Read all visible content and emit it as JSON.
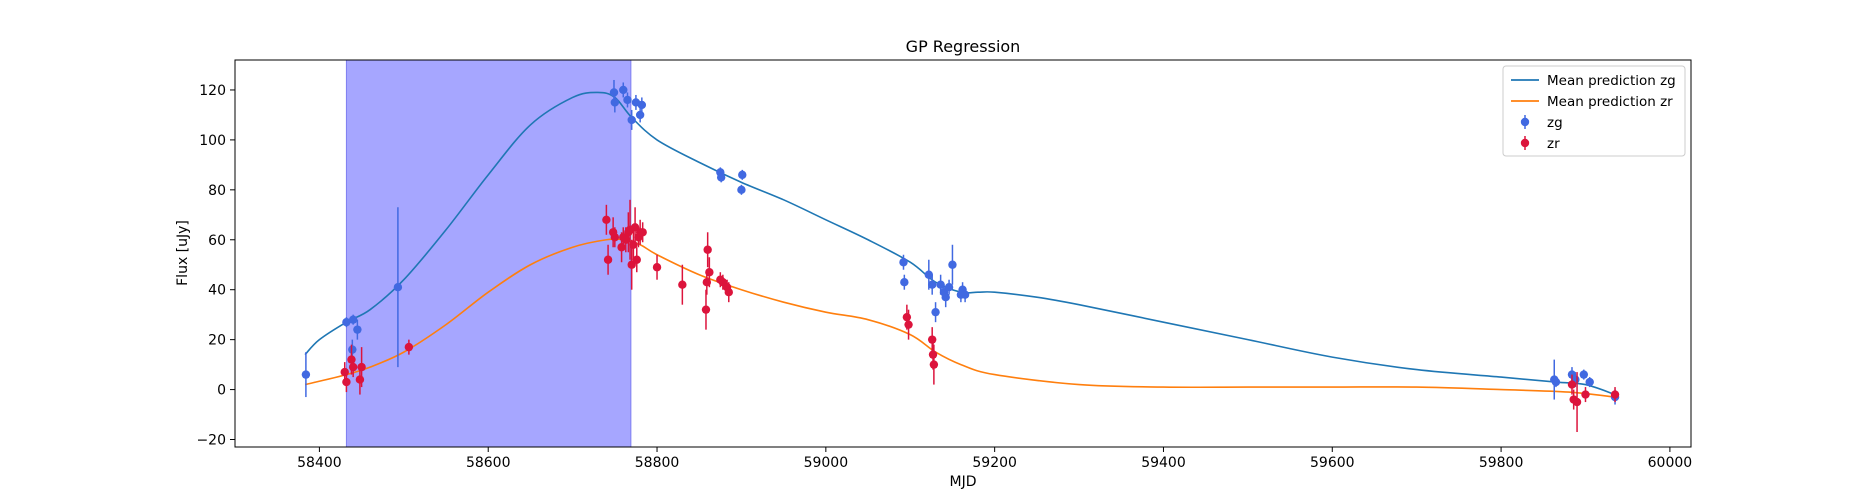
{
  "chart_data": {
    "type": "scatter",
    "title": "GP Regression",
    "xlabel": "MJD",
    "ylabel": "Flux [uJy]",
    "xlim": [
      58300,
      60025
    ],
    "ylim": [
      -23,
      132
    ],
    "xticks": [
      58400,
      58600,
      58800,
      59000,
      59200,
      59400,
      59600,
      59800,
      60000
    ],
    "xtick_labels": [
      "58400",
      "58600",
      "58800",
      "59000",
      "59200",
      "59400",
      "59600",
      "59800",
      "60000"
    ],
    "yticks": [
      -20,
      0,
      20,
      40,
      60,
      80,
      100,
      120
    ],
    "ytick_labels": [
      "−20",
      "0",
      "20",
      "40",
      "60",
      "80",
      "100",
      "120"
    ],
    "grid": false,
    "legend_position": "top-right",
    "shaded_region": {
      "x_start": 58432,
      "x_end": 58769,
      "color": "#a6a6ff"
    },
    "lines": [
      {
        "name": "Mean prediction zg",
        "color": "#1f77b4",
        "x": [
          58383,
          58400,
          58432,
          58460,
          58500,
          58550,
          58600,
          58650,
          58700,
          58730,
          58750,
          58770,
          58800,
          58850,
          58900,
          58950,
          59000,
          59050,
          59100,
          59130,
          59160,
          59180,
          59200,
          59250,
          59300,
          59400,
          59500,
          59600,
          59700,
          59800,
          59865,
          59900,
          59935
        ],
        "y": [
          14,
          20,
          27,
          32,
          44,
          64,
          86,
          106,
          117,
          119,
          117,
          109,
          100,
          91,
          83,
          76,
          68,
          60,
          51,
          43,
          39,
          39,
          39,
          37,
          34,
          27,
          20,
          13,
          8,
          5,
          3,
          2,
          -2
        ]
      },
      {
        "name": "Mean prediction zr",
        "color": "#ff7f0e",
        "x": [
          58383,
          58432,
          58460,
          58500,
          58550,
          58600,
          58650,
          58700,
          58740,
          58760,
          58780,
          58800,
          58850,
          58900,
          58950,
          59000,
          59050,
          59100,
          59130,
          59160,
          59200,
          59300,
          59400,
          59500,
          59600,
          59700,
          59800,
          59880,
          59935
        ],
        "y": [
          2,
          6,
          9,
          15,
          26,
          39,
          50,
          57,
          60,
          60,
          58,
          54,
          46,
          40,
          35,
          31,
          28,
          22,
          15,
          10,
          6,
          2,
          1,
          1,
          1,
          1,
          0,
          -1,
          -3
        ]
      }
    ],
    "series": [
      {
        "name": "zg",
        "color": "#4169e1",
        "points": [
          [
            58384,
            6,
            9
          ],
          [
            58432,
            27,
            2
          ],
          [
            58440,
            28,
            2
          ],
          [
            58439,
            16,
            4
          ],
          [
            58445,
            24,
            4
          ],
          [
            58493,
            41,
            32
          ],
          [
            58749,
            119,
            5
          ],
          [
            58750,
            115,
            4
          ],
          [
            58760,
            120,
            3
          ],
          [
            58765,
            116,
            3
          ],
          [
            58770,
            108,
            4
          ],
          [
            58775,
            115,
            3
          ],
          [
            58780,
            110,
            3
          ],
          [
            58782,
            114,
            3
          ],
          [
            58875,
            87,
            2
          ],
          [
            58876,
            85,
            2
          ],
          [
            58900,
            80,
            2
          ],
          [
            58901,
            86,
            2
          ],
          [
            59092,
            51,
            3
          ],
          [
            59093,
            43,
            3
          ],
          [
            59122,
            46,
            6
          ],
          [
            59126,
            42,
            4
          ],
          [
            59130,
            31,
            4
          ],
          [
            59136,
            42,
            4
          ],
          [
            59140,
            39,
            3
          ],
          [
            59142,
            37,
            4
          ],
          [
            59146,
            41,
            3
          ],
          [
            59150,
            50,
            8
          ],
          [
            59160,
            38,
            3
          ],
          [
            59162,
            40,
            3
          ],
          [
            59165,
            38,
            3
          ],
          [
            59863,
            4,
            8
          ],
          [
            59865,
            3,
            2
          ],
          [
            59884,
            6,
            3
          ],
          [
            59888,
            4,
            3
          ],
          [
            59898,
            6,
            2
          ],
          [
            59905,
            3,
            2
          ],
          [
            59935,
            -3,
            3
          ]
        ]
      },
      {
        "name": "zr",
        "color": "#dc143c",
        "points": [
          [
            58430,
            7,
            4
          ],
          [
            58432,
            3,
            4
          ],
          [
            58438,
            12,
            6
          ],
          [
            58440,
            9,
            4
          ],
          [
            58448,
            4,
            6
          ],
          [
            58450,
            9,
            8
          ],
          [
            58506,
            17,
            3
          ],
          [
            58740,
            68,
            6
          ],
          [
            58742,
            52,
            6
          ],
          [
            58748,
            63,
            6
          ],
          [
            58750,
            61,
            4
          ],
          [
            58758,
            57,
            6
          ],
          [
            58760,
            61,
            4
          ],
          [
            58763,
            60,
            5
          ],
          [
            58766,
            63,
            8
          ],
          [
            58768,
            64,
            12
          ],
          [
            58770,
            50,
            10
          ],
          [
            58772,
            58,
            6
          ],
          [
            58774,
            65,
            8
          ],
          [
            58776,
            52,
            5
          ],
          [
            58778,
            61,
            4
          ],
          [
            58780,
            63,
            5
          ],
          [
            58783,
            63,
            4
          ],
          [
            58800,
            49,
            5
          ],
          [
            58830,
            42,
            8
          ],
          [
            58858,
            32,
            8
          ],
          [
            58859,
            43,
            5
          ],
          [
            58860,
            56,
            7
          ],
          [
            58862,
            47,
            6
          ],
          [
            58875,
            44,
            3
          ],
          [
            58878,
            43,
            3
          ],
          [
            58883,
            41,
            3
          ],
          [
            58885,
            39,
            4
          ],
          [
            59096,
            29,
            5
          ],
          [
            59098,
            26,
            6
          ],
          [
            59126,
            20,
            5
          ],
          [
            59127,
            14,
            6
          ],
          [
            59128,
            10,
            8
          ],
          [
            59884,
            2,
            4
          ],
          [
            59886,
            -4,
            4
          ],
          [
            59890,
            -5,
            12
          ],
          [
            59900,
            -2,
            3
          ],
          [
            59935,
            -2,
            3
          ]
        ]
      }
    ]
  }
}
